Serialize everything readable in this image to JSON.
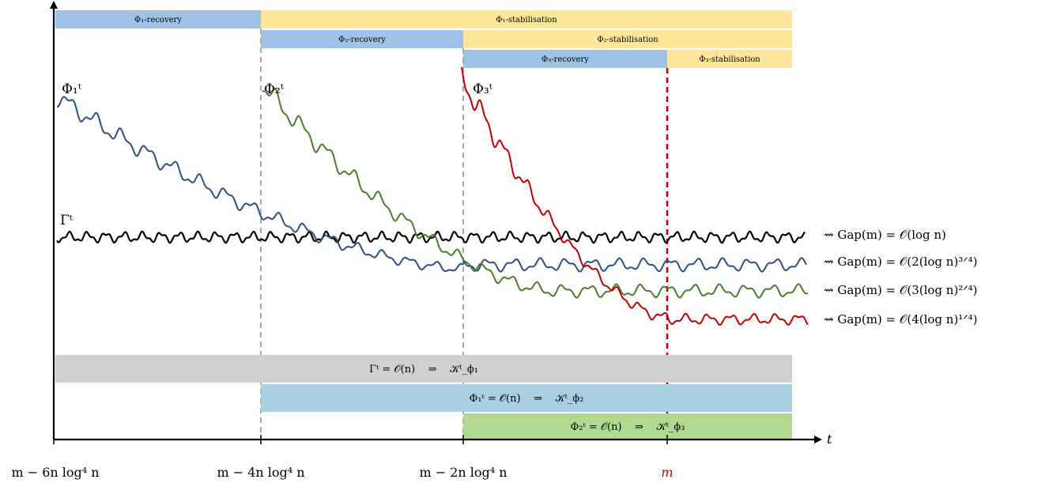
{
  "phases": {
    "phi1_recovery": "Φ₁-recovery",
    "phi1_stabilisation": "Φ₁-stabilisation",
    "phi2_recovery": "Φ₂-recovery",
    "phi2_stabilisation": "Φ₂-stabilisation",
    "phi3_recovery": "Φ₃-recovery",
    "phi3_stabilisation": "Φ₃-stabilisation"
  },
  "curves": {
    "phi1": "Φ₁ᵗ",
    "phi2": "Φ₂ᵗ",
    "phi3": "Φ₃ᵗ",
    "gamma": "Γᵗ"
  },
  "gaps": {
    "gamma": "⇝ Gap(m) = 𝒪(log n)",
    "phi1": "⇝ Gap(m) = 𝒪(2(log n)³ᐟ⁴)",
    "phi2": "⇝ Gap(m) = 𝒪(3(log n)²ᐟ⁴)",
    "phi3": "⇝ Gap(m) = 𝒪(4(log n)¹ᐟ⁴)"
  },
  "bands": {
    "gamma": "Γᵗ = 𝒪(n)    ⇒    𝒦ᵗ_ϕ₁",
    "phi1": "Φ₁ᵗ = 𝒪(n)    ⇒    𝒦ᵗ_ϕ₂",
    "phi2": "Φ₂ᵗ = 𝒪(n)    ⇒    𝒦ᵗ_ϕ₃"
  },
  "axis": {
    "x_label": "t",
    "ticks": [
      "m − 6n log⁴ n",
      "m − 4n log⁴ n",
      "m − 2n log⁴ n",
      "m"
    ]
  },
  "colors": {
    "blue_curve": "#2c4f86",
    "green_curve": "#4a7d2a",
    "red_curve": "#c00000",
    "black_curve": "#000000",
    "recovery_fill": "#9dc3e6",
    "stabilisation_fill": "#ffe699",
    "gray_band": "#d0d0d0",
    "blue_band": "#a8d0e0",
    "green_band": "#b1d98f",
    "m_marker": "#c00000"
  }
}
